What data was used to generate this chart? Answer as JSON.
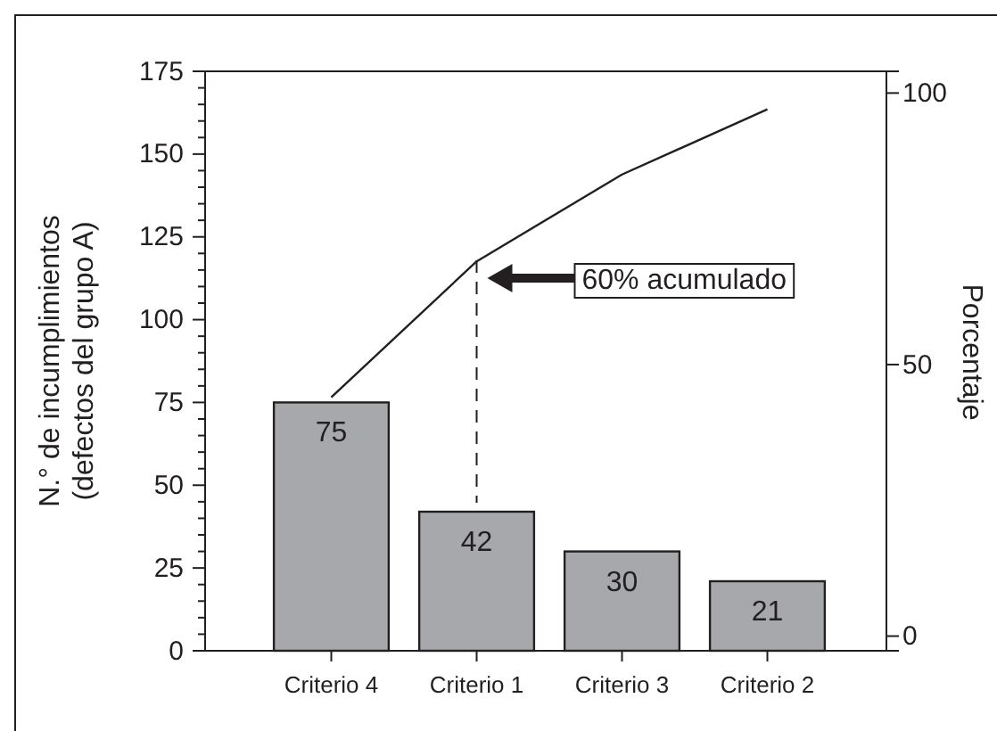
{
  "chart_data": {
    "type": "bar",
    "categories": [
      "Criterio 4",
      "Criterio 1",
      "Criterio 3",
      "Criterio 2"
    ],
    "series": [
      {
        "color": "#a7a8ab",
        "values": [
          75,
          42,
          30,
          21
        ],
        "value_labels": [
          "75",
          "42",
          "30",
          "21"
        ]
      },
      {
        "type": "line",
        "axis": "y2",
        "color": "#231f20",
        "values": [
          44,
          69,
          85,
          97
        ]
      }
    ],
    "ylabel": "N.° de incumplimientos\n(defectos del grupo A)",
    "y2label": "Porcentaje",
    "ylim": [
      0,
      175
    ],
    "yticks": [
      0,
      {
        "value": 5,
        "label": null
      },
      {
        "value": 10,
        "label": null
      },
      {
        "value": 15,
        "label": null
      },
      {
        "value": 20,
        "label": null
      },
      25,
      {
        "value": 30,
        "label": null
      },
      {
        "value": 35,
        "label": null
      },
      {
        "value": 40,
        "label": null
      },
      {
        "value": 45,
        "label": null
      },
      50,
      {
        "value": 55,
        "label": null
      },
      {
        "value": 60,
        "label": null
      },
      {
        "value": 65,
        "label": null
      },
      {
        "value": 70,
        "label": null
      },
      75,
      {
        "value": 80,
        "label": null
      },
      {
        "value": 85,
        "label": null
      },
      {
        "value": 90,
        "label": null
      },
      {
        "value": 95,
        "label": null
      },
      100,
      {
        "value": 105,
        "label": null
      },
      {
        "value": 110,
        "label": null
      },
      {
        "value": 115,
        "label": null
      },
      {
        "value": 120,
        "label": null
      },
      125,
      {
        "value": 130,
        "label": null
      },
      {
        "value": 135,
        "label": null
      },
      {
        "value": 140,
        "label": null
      },
      {
        "value": 145,
        "label": null
      },
      150,
      {
        "value": 155,
        "label": null
      },
      {
        "value": 160,
        "label": null
      },
      {
        "value": 165,
        "label": null
      },
      {
        "value": 170,
        "label": null
      },
      175
    ],
    "y2lim": [
      -2.7,
      104
    ],
    "y2ticks": [
      0,
      50,
      100
    ],
    "annotations": [
      "60% acumulado"
    ],
    "grid": false
  }
}
